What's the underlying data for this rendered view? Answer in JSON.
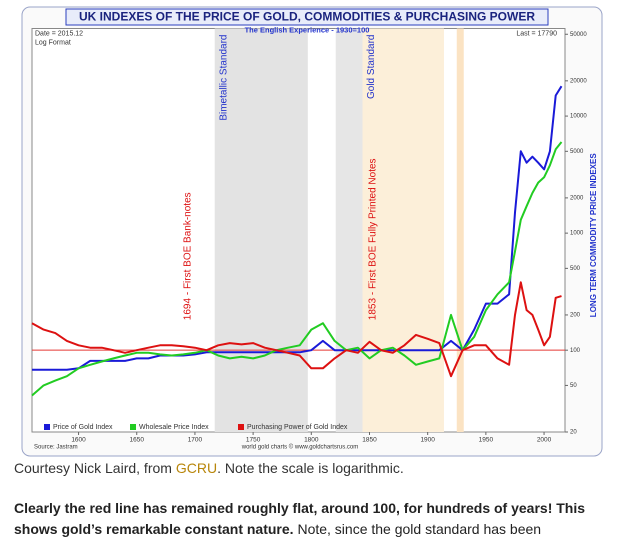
{
  "chart_data": {
    "type": "line",
    "title": "UK INDEXES OF THE PRICE OF GOLD, COMMODITIES & PURCHASING POWER",
    "subtitle": "The English Experience - 1930=100",
    "y_axis_label": "LONG TERM COMMODITY PRICE INDEXES",
    "date_label": "Date = 2015.12",
    "format_label": "Log Format",
    "last_label": "Last = 17790",
    "source": "Source: Jastram",
    "credit": "world gold charts © www.goldchartsrus.com",
    "log_scale": true,
    "reference_line": {
      "value": 100,
      "color": "#e53935"
    },
    "xlim": [
      1560,
      2018
    ],
    "xticks": [
      1600,
      1650,
      1700,
      1750,
      1800,
      1850,
      1900,
      1950,
      2000
    ],
    "ylim": [
      20,
      56000
    ],
    "yticks": [
      20,
      50,
      100,
      200,
      500,
      1000,
      2000,
      5000,
      10000,
      20000,
      50000
    ],
    "bands": [
      {
        "from": 1717,
        "to": 1797,
        "color": "#e3e3e3",
        "label": "Bimetallic Standard"
      },
      {
        "from": 1821,
        "to": 1844,
        "color": "#e6e6e6"
      },
      {
        "from": 1844,
        "to": 1914,
        "color": "#fcefd9",
        "label": "Gold Standard"
      },
      {
        "from": 1925,
        "to": 1931,
        "color": "#fbe3c3"
      }
    ],
    "annotations": [
      {
        "text": "1694 - First BOE Bank-notes",
        "x": 1694
      },
      {
        "text": "1853 - First BOE Fully Printed Notes",
        "x": 1853
      }
    ],
    "x": [
      1560,
      1570,
      1580,
      1590,
      1600,
      1610,
      1620,
      1630,
      1640,
      1650,
      1660,
      1670,
      1680,
      1690,
      1700,
      1710,
      1720,
      1730,
      1740,
      1750,
      1760,
      1770,
      1780,
      1790,
      1800,
      1810,
      1820,
      1830,
      1840,
      1850,
      1860,
      1870,
      1880,
      1890,
      1900,
      1910,
      1920,
      1930,
      1940,
      1950,
      1960,
      1970,
      1975,
      1980,
      1985,
      1990,
      1995,
      2000,
      2005,
      2010,
      2015
    ],
    "series": [
      {
        "name": "Price of Gold Index",
        "color": "#1a1ad8",
        "values": [
          68,
          68,
          68,
          68,
          70,
          81,
          81,
          81,
          81,
          85,
          85,
          90,
          90,
          90,
          92,
          96,
          96,
          96,
          96,
          96,
          96,
          96,
          96,
          96,
          100,
          120,
          100,
          100,
          100,
          100,
          100,
          100,
          100,
          100,
          100,
          100,
          120,
          100,
          150,
          250,
          250,
          300,
          1500,
          5000,
          4000,
          4500,
          4000,
          3500,
          5000,
          15000,
          18000
        ]
      },
      {
        "name": "Wholesale Price Index",
        "color": "#22cc22",
        "values": [
          41,
          50,
          55,
          60,
          70,
          75,
          80,
          85,
          90,
          95,
          95,
          92,
          90,
          92,
          95,
          100,
          90,
          85,
          88,
          85,
          90,
          100,
          105,
          110,
          150,
          170,
          120,
          100,
          105,
          85,
          100,
          105,
          90,
          75,
          80,
          85,
          200,
          100,
          130,
          220,
          300,
          380,
          700,
          1300,
          1700,
          2200,
          2700,
          3000,
          3800,
          5200,
          6000
        ]
      },
      {
        "name": "Purchasing Power of Gold Index",
        "color": "#dd1111",
        "values": [
          170,
          150,
          140,
          120,
          110,
          105,
          105,
          100,
          95,
          100,
          105,
          110,
          110,
          108,
          105,
          100,
          110,
          115,
          112,
          115,
          105,
          100,
          95,
          90,
          70,
          70,
          85,
          100,
          95,
          118,
          100,
          95,
          110,
          135,
          125,
          115,
          60,
          100,
          110,
          110,
          85,
          75,
          200,
          380,
          220,
          200,
          150,
          110,
          130,
          280,
          290
        ]
      }
    ]
  },
  "caption": {
    "prefix": "Courtesy Nick Laird, from ",
    "link": "GCRU",
    "suffix": ". Note the scale is logarithmic."
  },
  "paragraph": {
    "bold": "Clearly the red line has remained roughly flat, around 100, for hundreds of years! This shows gold’s remarkable constant nature.",
    "text": " Note, since the gold standard has been"
  }
}
